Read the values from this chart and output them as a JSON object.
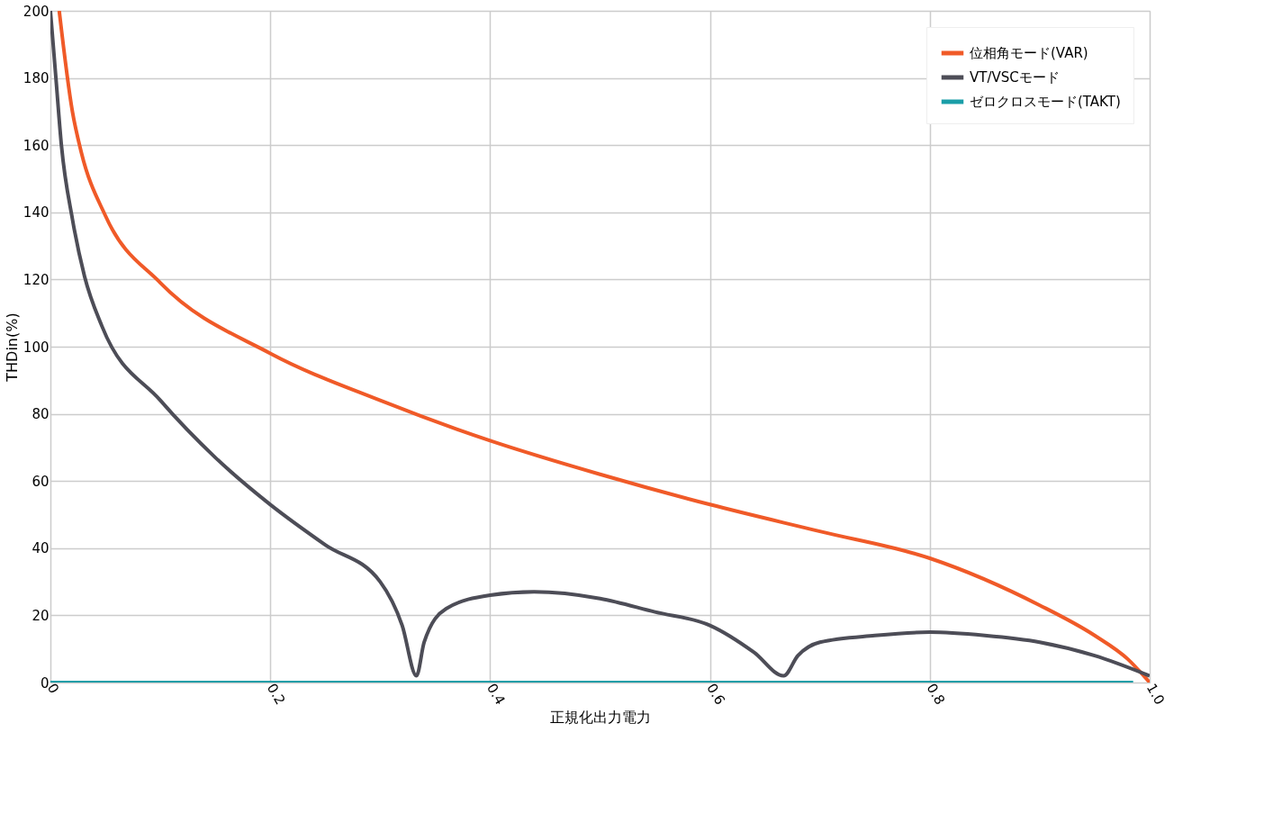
{
  "chart_data": {
    "type": "line",
    "xlabel": "正規化出力電力",
    "ylabel": "THDin(%)",
    "xlim": [
      0,
      1
    ],
    "xticks": [
      0,
      0.2,
      0.4,
      0.6,
      0.8,
      {
        "value": 1,
        "label": "1.0"
      }
    ],
    "ylim": [
      0,
      200
    ],
    "yticks": [
      0,
      20,
      40,
      60,
      80,
      100,
      120,
      140,
      160,
      180,
      200
    ],
    "grid": true,
    "legend": "top right",
    "marker": "none",
    "line_style": "solid",
    "series": [
      {
        "name": "位相角モード(VAR)",
        "color": "#f05a28",
        "x": [
          0.008,
          0.02,
          0.028,
          0.05,
          0.1,
          0.2,
          0.3,
          0.4,
          0.5,
          0.6,
          0.7,
          0.8,
          0.9,
          0.95,
          0.98,
          1.0
        ],
        "values": [
          200,
          170,
          158,
          139,
          119,
          98,
          84,
          72,
          62,
          53,
          45,
          37,
          23,
          14,
          7,
          0
        ]
      },
      {
        "name": "VT/VSCモード",
        "color": "#4d4d57",
        "x": [
          0,
          0.005,
          0.01,
          0.02,
          0.031,
          0.047,
          0.1,
          0.15,
          0.2,
          0.25,
          0.3,
          0.32,
          0.333,
          0.34,
          0.36,
          0.4,
          0.44,
          0.5,
          0.55,
          0.6,
          0.64,
          0.667,
          0.68,
          0.7,
          0.75,
          0.8,
          0.85,
          0.9,
          0.95,
          1.0
        ],
        "values": [
          200,
          180,
          160,
          138,
          121,
          106,
          84,
          67,
          53,
          41,
          30,
          17,
          2,
          12,
          22,
          26,
          27,
          25,
          21,
          17,
          9,
          2,
          8,
          12,
          14,
          15,
          14,
          12,
          8,
          2
        ]
      },
      {
        "name": "ゼロクロスモード(TAKT)",
        "color": "#1a9ea8",
        "x": [
          0,
          0.985
        ],
        "values": [
          0,
          0
        ]
      }
    ]
  }
}
